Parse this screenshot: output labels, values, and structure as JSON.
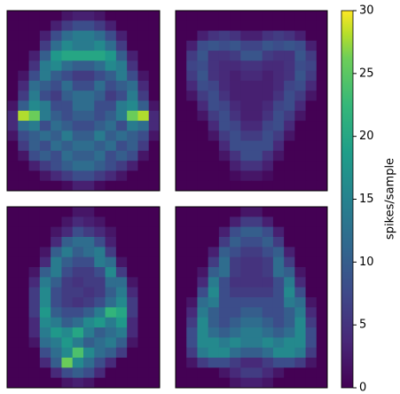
{
  "chart_data": {
    "type": "heatmap",
    "colormap": "viridis",
    "panels": [
      {
        "values": [
          [
            0,
            0,
            0,
            0,
            0,
            2,
            3,
            3,
            2,
            0,
            0,
            0,
            0,
            0
          ],
          [
            0,
            0,
            0,
            0,
            3,
            6,
            8,
            8,
            6,
            3,
            0,
            0,
            0,
            0
          ],
          [
            0,
            0,
            0,
            3,
            8,
            12,
            14,
            14,
            12,
            8,
            3,
            0,
            0,
            0
          ],
          [
            0,
            0,
            0,
            6,
            12,
            16,
            14,
            14,
            16,
            12,
            6,
            0,
            0,
            0
          ],
          [
            0,
            0,
            3,
            10,
            18,
            20,
            20,
            20,
            20,
            18,
            10,
            3,
            0,
            0
          ],
          [
            0,
            0,
            5,
            14,
            16,
            12,
            10,
            10,
            12,
            16,
            14,
            5,
            0,
            0
          ],
          [
            0,
            2,
            8,
            14,
            10,
            8,
            6,
            6,
            8,
            10,
            14,
            8,
            2,
            0
          ],
          [
            0,
            4,
            12,
            10,
            8,
            12,
            8,
            8,
            12,
            8,
            10,
            12,
            4,
            0
          ],
          [
            0,
            6,
            14,
            8,
            6,
            10,
            12,
            12,
            10,
            6,
            8,
            14,
            6,
            0
          ],
          [
            2,
            10,
            16,
            14,
            8,
            8,
            12,
            12,
            8,
            8,
            14,
            16,
            10,
            2
          ],
          [
            4,
            28,
            26,
            14,
            10,
            8,
            10,
            10,
            8,
            10,
            14,
            26,
            28,
            4
          ],
          [
            4,
            12,
            14,
            8,
            12,
            10,
            8,
            8,
            10,
            12,
            8,
            14,
            12,
            4
          ],
          [
            2,
            8,
            10,
            12,
            10,
            14,
            10,
            10,
            14,
            10,
            12,
            10,
            8,
            2
          ],
          [
            0,
            6,
            10,
            8,
            12,
            10,
            12,
            12,
            10,
            12,
            8,
            10,
            6,
            0
          ],
          [
            0,
            2,
            8,
            10,
            8,
            12,
            10,
            10,
            12,
            8,
            10,
            8,
            2,
            0
          ],
          [
            0,
            0,
            3,
            6,
            8,
            10,
            12,
            12,
            10,
            8,
            6,
            3,
            0,
            0
          ],
          [
            0,
            0,
            0,
            2,
            4,
            6,
            8,
            8,
            6,
            4,
            2,
            0,
            0,
            0
          ],
          [
            0,
            0,
            0,
            0,
            0,
            1,
            3,
            3,
            1,
            0,
            0,
            0,
            0,
            0
          ]
        ]
      },
      {
        "values": [
          [
            0,
            0,
            0,
            0,
            0,
            0,
            0,
            0,
            0,
            0,
            0,
            0,
            0,
            0
          ],
          [
            0,
            0,
            0,
            0,
            0,
            0,
            0,
            0,
            0,
            0,
            0,
            0,
            0,
            0
          ],
          [
            0,
            0,
            3,
            5,
            6,
            5,
            3,
            3,
            5,
            6,
            5,
            3,
            0,
            0
          ],
          [
            0,
            3,
            8,
            9,
            8,
            9,
            7,
            7,
            9,
            8,
            9,
            8,
            3,
            0
          ],
          [
            0,
            6,
            9,
            5,
            5,
            6,
            9,
            9,
            6,
            5,
            5,
            9,
            6,
            0
          ],
          [
            0,
            7,
            8,
            5,
            4,
            4,
            5,
            5,
            4,
            4,
            5,
            8,
            7,
            0
          ],
          [
            0,
            6,
            9,
            5,
            4,
            3,
            4,
            4,
            3,
            4,
            5,
            9,
            6,
            0
          ],
          [
            0,
            4,
            8,
            7,
            4,
            3,
            3,
            3,
            3,
            4,
            7,
            8,
            4,
            0
          ],
          [
            0,
            2,
            6,
            8,
            5,
            3,
            3,
            3,
            3,
            5,
            8,
            6,
            2,
            0
          ],
          [
            0,
            0,
            4,
            8,
            7,
            4,
            3,
            3,
            4,
            7,
            8,
            4,
            0,
            0
          ],
          [
            0,
            0,
            2,
            6,
            8,
            5,
            3,
            3,
            5,
            8,
            6,
            2,
            0,
            0
          ],
          [
            0,
            0,
            0,
            4,
            8,
            7,
            4,
            4,
            7,
            8,
            4,
            0,
            0,
            0
          ],
          [
            0,
            0,
            0,
            2,
            6,
            8,
            6,
            6,
            8,
            6,
            2,
            0,
            0,
            0
          ],
          [
            0,
            0,
            0,
            0,
            4,
            8,
            8,
            8,
            8,
            4,
            0,
            0,
            0,
            0
          ],
          [
            0,
            0,
            0,
            0,
            2,
            5,
            8,
            8,
            5,
            2,
            0,
            0,
            0,
            0
          ],
          [
            0,
            0,
            0,
            0,
            0,
            3,
            5,
            5,
            3,
            0,
            0,
            0,
            0,
            0
          ],
          [
            0,
            0,
            0,
            0,
            0,
            1,
            2,
            2,
            1,
            0,
            0,
            0,
            0,
            0
          ],
          [
            0,
            0,
            0,
            0,
            0,
            0,
            0,
            0,
            0,
            0,
            0,
            0,
            0,
            0
          ]
        ]
      },
      {
        "values": [
          [
            0,
            0,
            0,
            0,
            0,
            0,
            2,
            2,
            0,
            0,
            0,
            0,
            0,
            0
          ],
          [
            0,
            0,
            0,
            0,
            0,
            2,
            4,
            3,
            2,
            0,
            0,
            0,
            0,
            0
          ],
          [
            0,
            0,
            0,
            0,
            2,
            4,
            8,
            6,
            4,
            2,
            0,
            0,
            0,
            0
          ],
          [
            0,
            0,
            0,
            0,
            4,
            10,
            12,
            12,
            8,
            3,
            0,
            0,
            0,
            0
          ],
          [
            0,
            0,
            0,
            2,
            10,
            14,
            10,
            12,
            14,
            6,
            0,
            0,
            0,
            0
          ],
          [
            0,
            0,
            0,
            4,
            14,
            10,
            8,
            8,
            14,
            12,
            2,
            0,
            0,
            0
          ],
          [
            0,
            0,
            2,
            10,
            14,
            8,
            6,
            6,
            8,
            16,
            6,
            0,
            0,
            0
          ],
          [
            0,
            0,
            4,
            14,
            10,
            6,
            5,
            6,
            6,
            12,
            12,
            2,
            0,
            0
          ],
          [
            0,
            0,
            6,
            16,
            8,
            6,
            6,
            5,
            6,
            10,
            14,
            4,
            0,
            0
          ],
          [
            0,
            0,
            6,
            16,
            8,
            6,
            5,
            6,
            8,
            12,
            16,
            6,
            0,
            0
          ],
          [
            0,
            0,
            6,
            18,
            10,
            8,
            8,
            10,
            14,
            22,
            20,
            6,
            0,
            0
          ],
          [
            0,
            0,
            4,
            16,
            14,
            10,
            12,
            16,
            18,
            14,
            18,
            4,
            0,
            0
          ],
          [
            0,
            0,
            4,
            14,
            18,
            16,
            20,
            14,
            10,
            12,
            14,
            4,
            0,
            0
          ],
          [
            0,
            0,
            2,
            12,
            14,
            18,
            14,
            10,
            12,
            14,
            10,
            2,
            0,
            0
          ],
          [
            0,
            0,
            0,
            8,
            12,
            16,
            24,
            16,
            12,
            10,
            6,
            0,
            0,
            0
          ],
          [
            0,
            0,
            0,
            4,
            10,
            26,
            16,
            12,
            8,
            4,
            0,
            0,
            0,
            0
          ],
          [
            0,
            0,
            0,
            0,
            4,
            8,
            10,
            8,
            4,
            0,
            0,
            0,
            0,
            0
          ],
          [
            0,
            0,
            0,
            0,
            0,
            2,
            3,
            2,
            0,
            0,
            0,
            0,
            0,
            0
          ]
        ]
      },
      {
        "values": [
          [
            0,
            0,
            0,
            0,
            0,
            0,
            2,
            2,
            0,
            0,
            0,
            0,
            0,
            0
          ],
          [
            0,
            0,
            0,
            0,
            0,
            3,
            6,
            6,
            3,
            0,
            0,
            0,
            0,
            0
          ],
          [
            0,
            0,
            0,
            0,
            3,
            8,
            10,
            10,
            8,
            3,
            0,
            0,
            0,
            0
          ],
          [
            0,
            0,
            0,
            0,
            6,
            10,
            8,
            8,
            10,
            6,
            0,
            0,
            0,
            0
          ],
          [
            0,
            0,
            0,
            3,
            10,
            8,
            6,
            6,
            8,
            10,
            3,
            0,
            0,
            0
          ],
          [
            0,
            0,
            0,
            6,
            12,
            6,
            5,
            5,
            6,
            12,
            6,
            0,
            0,
            0
          ],
          [
            0,
            0,
            2,
            10,
            12,
            6,
            5,
            5,
            6,
            12,
            10,
            2,
            0,
            0
          ],
          [
            0,
            0,
            4,
            14,
            8,
            5,
            5,
            5,
            5,
            8,
            14,
            4,
            0,
            0
          ],
          [
            0,
            0,
            8,
            16,
            8,
            6,
            6,
            6,
            6,
            8,
            16,
            8,
            0,
            0
          ],
          [
            0,
            2,
            12,
            14,
            8,
            8,
            8,
            8,
            8,
            8,
            14,
            12,
            2,
            0
          ],
          [
            0,
            4,
            14,
            10,
            8,
            8,
            10,
            10,
            8,
            8,
            10,
            14,
            4,
            0
          ],
          [
            0,
            6,
            16,
            10,
            8,
            10,
            12,
            12,
            10,
            8,
            10,
            16,
            6,
            0
          ],
          [
            0,
            8,
            16,
            12,
            10,
            12,
            14,
            14,
            12,
            10,
            12,
            16,
            8,
            0
          ],
          [
            0,
            8,
            16,
            16,
            14,
            16,
            14,
            14,
            16,
            14,
            16,
            16,
            8,
            0
          ],
          [
            0,
            6,
            14,
            16,
            16,
            12,
            10,
            10,
            12,
            16,
            16,
            14,
            6,
            0
          ],
          [
            0,
            2,
            6,
            8,
            8,
            6,
            4,
            4,
            6,
            8,
            8,
            6,
            2,
            0
          ],
          [
            0,
            0,
            0,
            0,
            2,
            4,
            6,
            6,
            4,
            2,
            0,
            0,
            0,
            0
          ],
          [
            0,
            0,
            0,
            0,
            0,
            2,
            3,
            3,
            2,
            0,
            0,
            0,
            0,
            0
          ]
        ]
      }
    ],
    "colorbar": {
      "label": "spikes/sample",
      "lim": [
        0,
        30
      ],
      "ticks": [
        0,
        5,
        10,
        15,
        20,
        25,
        30
      ]
    }
  }
}
